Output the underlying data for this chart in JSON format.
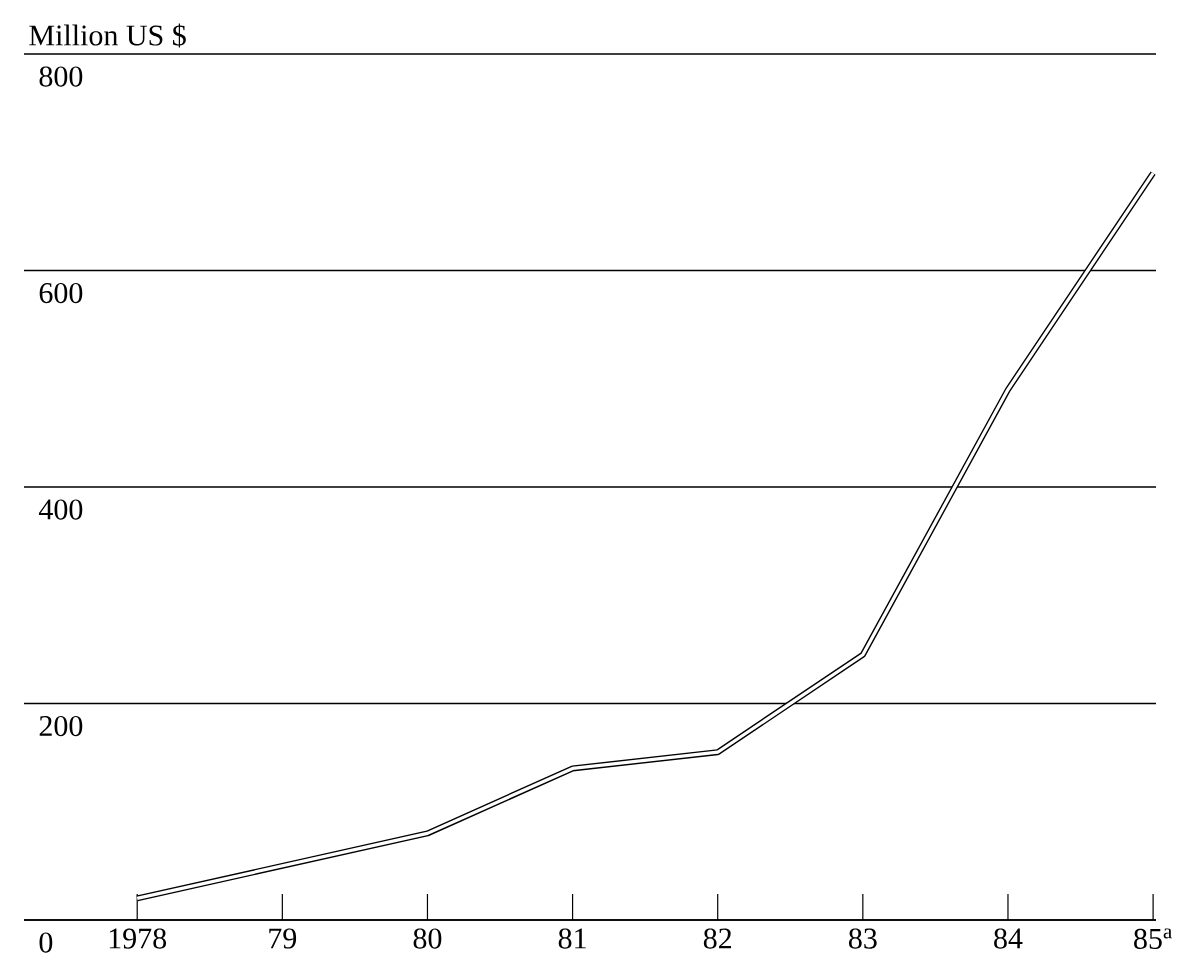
{
  "chart_data": {
    "type": "line",
    "ylabel": "Million US $",
    "categories": [
      "1978",
      "79",
      "80",
      "81",
      "82",
      "83",
      "84",
      "85$^{a}$"
    ],
    "values": [
      20,
      50,
      80,
      140,
      155,
      245,
      490,
      690
    ],
    "color": "#000000",
    "ylim": [
      0,
      800
    ],
    "yticks": [
      0,
      200,
      400,
      600,
      800
    ],
    "grid": "y"
  }
}
